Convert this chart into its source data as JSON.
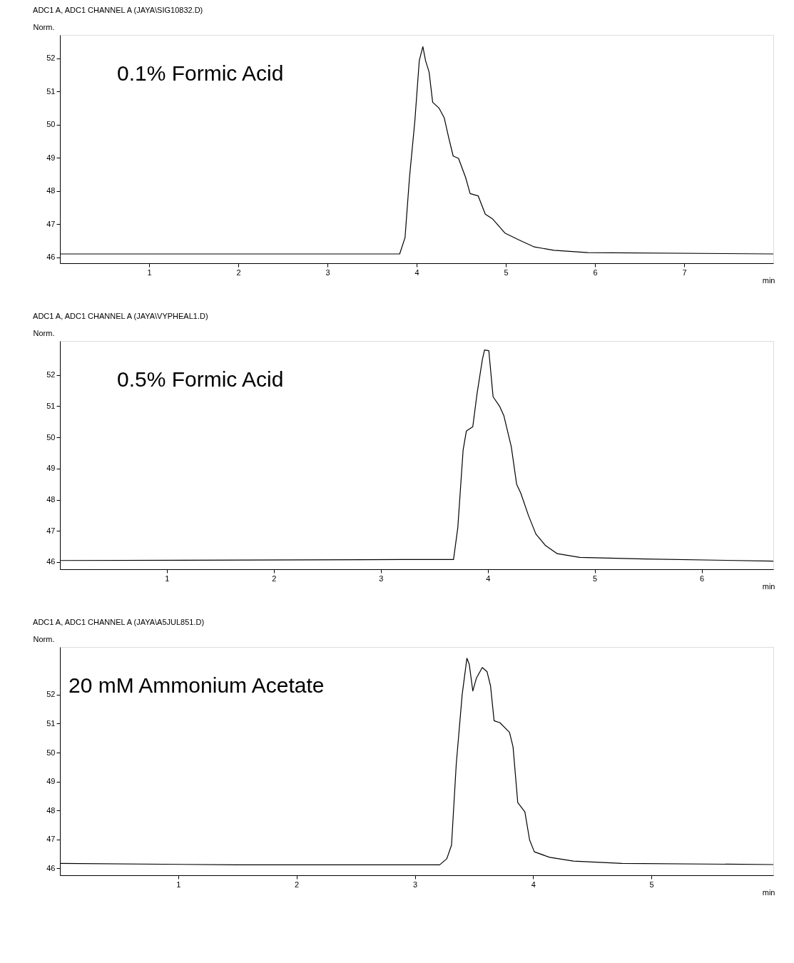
{
  "chart_data": [
    {
      "type": "line",
      "title": "ADC1 A, ADC1 CHANNEL A (JAYA\\SIG10832.D)",
      "xlabel": "min",
      "ylabel": "Norm.",
      "annotations": [
        "0.1% Formic Acid"
      ],
      "xlim": [
        0,
        8.0
      ],
      "ylim": [
        45.82,
        52.7
      ],
      "xticks": [
        1,
        2,
        3,
        4,
        5,
        6,
        7
      ],
      "yticks": [
        46,
        47,
        48,
        49,
        50,
        51,
        52
      ],
      "grid": false,
      "marker": "none",
      "line_style": "solid",
      "series": [
        {
          "color": "#000000",
          "x": [
            0,
            3.81,
            3.87,
            3.92,
            3.98,
            4.03,
            4.07,
            4.1,
            4.14,
            4.18,
            4.25,
            4.31,
            4.36,
            4.41,
            4.47,
            4.55,
            4.6,
            4.69,
            4.77,
            4.85,
            4.99,
            5.15,
            5.32,
            5.54,
            5.92,
            8.0
          ],
          "values": [
            46.1,
            46.1,
            46.59,
            48.4,
            50.1,
            51.93,
            52.35,
            51.93,
            51.58,
            50.67,
            50.5,
            50.2,
            49.6,
            49.05,
            48.98,
            48.4,
            47.92,
            47.85,
            47.3,
            47.16,
            46.73,
            46.52,
            46.31,
            46.21,
            46.14,
            46.1
          ]
        }
      ]
    },
    {
      "type": "line",
      "title": "ADC1 A, ADC1 CHANNEL A (JAYA\\VYPHEAL1.D)",
      "xlabel": "min",
      "ylabel": "Norm.",
      "annotations": [
        "0.5% Formic Acid"
      ],
      "xlim": [
        0,
        6.67
      ],
      "ylim": [
        45.77,
        53.09
      ],
      "xticks": [
        1,
        2,
        3,
        4,
        5,
        6
      ],
      "yticks": [
        46,
        47,
        48,
        49,
        50,
        51,
        52
      ],
      "grid": false,
      "marker": "none",
      "line_style": "solid",
      "series": [
        {
          "color": "#000000",
          "x": [
            0,
            3.2,
            3.68,
            3.72,
            3.77,
            3.8,
            3.86,
            3.9,
            3.95,
            3.97,
            4.01,
            4.05,
            4.11,
            4.15,
            4.22,
            4.27,
            4.31,
            4.38,
            4.45,
            4.54,
            4.65,
            4.86,
            5.47,
            6.67
          ],
          "values": [
            46.05,
            46.08,
            46.08,
            47.1,
            49.6,
            50.2,
            50.34,
            51.4,
            52.5,
            52.8,
            52.78,
            51.3,
            51.0,
            50.7,
            49.7,
            48.5,
            48.2,
            47.5,
            46.9,
            46.53,
            46.27,
            46.15,
            46.1,
            46.03
          ]
        }
      ]
    },
    {
      "type": "line",
      "title": "ADC1 A, ADC1 CHANNEL A (JAYA\\A5JUL851.D)",
      "xlabel": "min",
      "ylabel": "Norm.",
      "annotations": [
        "20 mM Ammonium Acetate"
      ],
      "xlim": [
        0,
        6.03
      ],
      "ylim": [
        45.76,
        53.65
      ],
      "xticks": [
        1,
        2,
        3,
        4,
        5
      ],
      "yticks": [
        46,
        47,
        48,
        49,
        50,
        51,
        52
      ],
      "grid": false,
      "marker": "none",
      "line_style": "solid",
      "series": [
        {
          "color": "#000000",
          "x": [
            0,
            1.5,
            3.21,
            3.27,
            3.31,
            3.35,
            3.4,
            3.44,
            3.46,
            3.49,
            3.52,
            3.57,
            3.61,
            3.64,
            3.67,
            3.72,
            3.8,
            3.83,
            3.87,
            3.93,
            3.97,
            4.01,
            4.14,
            4.34,
            4.75,
            6.03
          ],
          "values": [
            46.17,
            46.12,
            46.12,
            46.33,
            46.8,
            49.6,
            52.0,
            53.26,
            53.05,
            52.13,
            52.57,
            52.94,
            52.8,
            52.3,
            51.1,
            51.03,
            50.7,
            50.2,
            48.27,
            47.95,
            46.98,
            46.57,
            46.38,
            46.25,
            46.17,
            46.13
          ]
        }
      ]
    }
  ]
}
